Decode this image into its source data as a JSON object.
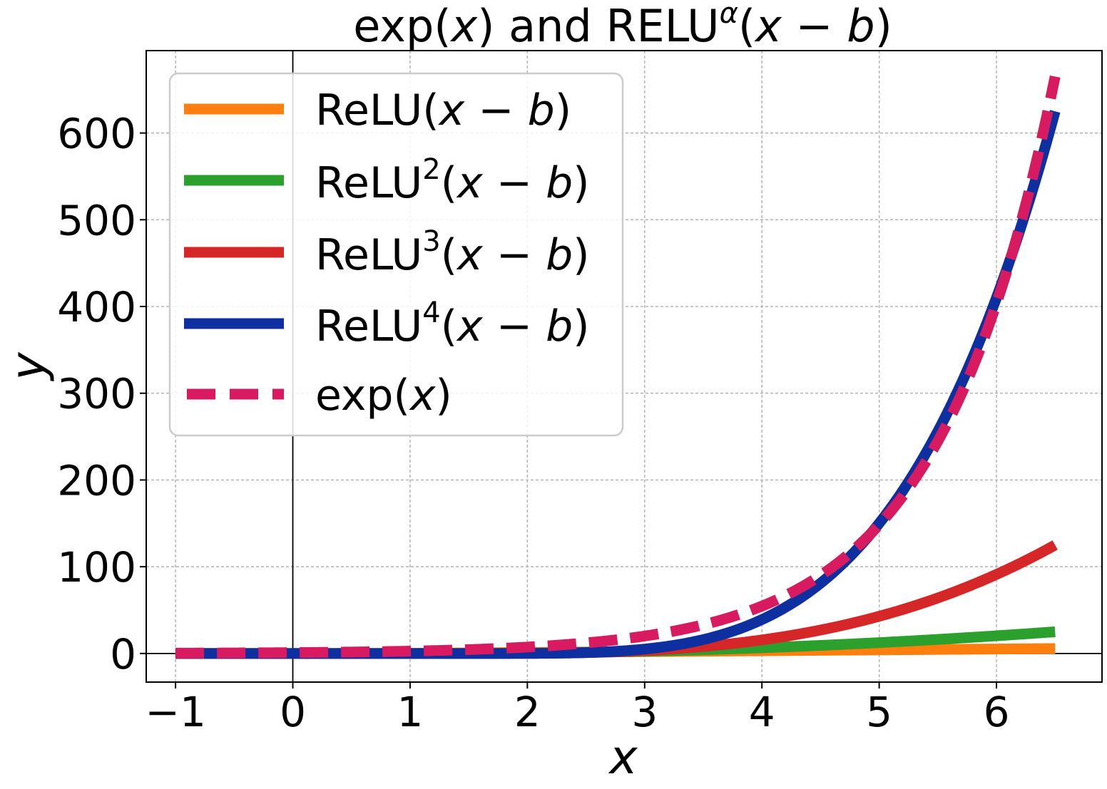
{
  "chart_data": {
    "type": "line",
    "title": {
      "prefix": "exp(",
      "prefix_var": "x",
      "middle": ") and RELU",
      "superscript": "α",
      "open": "(",
      "var_x": "x",
      "minus": " − ",
      "var_b": "b",
      "close": ")"
    },
    "xlabel": "x",
    "ylabel": "y",
    "xlim": [
      -1.25,
      6.9
    ],
    "ylim": [
      -33,
      695
    ],
    "x_ticks": [
      -1,
      0,
      1,
      2,
      3,
      4,
      5,
      6
    ],
    "x_tick_labels": [
      "−1",
      "0",
      "1",
      "2",
      "3",
      "4",
      "5",
      "6"
    ],
    "y_ticks": [
      0,
      100,
      200,
      300,
      400,
      500,
      600
    ],
    "y_tick_labels": [
      "0",
      "100",
      "200",
      "300",
      "400",
      "500",
      "600"
    ],
    "grid": true,
    "zero_lines": true,
    "legend_position": "upper-left",
    "x_range": [
      -1,
      6.5
    ],
    "series": [
      {
        "key": "relu1",
        "legend": {
          "base": "ReLU",
          "sup": "",
          "open": "(",
          "x": "x",
          "minus": " − ",
          "b": "b",
          "close": ")"
        },
        "color": "#ff7f0e",
        "dashed": false,
        "formula": {
          "kind": "relu_power",
          "scale": 1.0,
          "bias": 0.85,
          "power": 1
        },
        "samples": [
          [
            -1,
            0
          ],
          [
            1,
            0.15
          ],
          [
            3,
            2.15
          ],
          [
            5,
            4.15
          ],
          [
            6.5,
            5.65
          ]
        ]
      },
      {
        "key": "relu2",
        "legend": {
          "base": "ReLU",
          "sup": "2",
          "open": "(",
          "x": "x",
          "minus": " − ",
          "b": "b",
          "close": ")"
        },
        "color": "#2ca02c",
        "dashed": false,
        "formula": {
          "kind": "relu_power",
          "scale": 0.95,
          "bias": 1.37,
          "power": 2
        },
        "samples": [
          [
            -1,
            0
          ],
          [
            2,
            0.38
          ],
          [
            4,
            6.6
          ],
          [
            5,
            12.5
          ],
          [
            6.5,
            25.0
          ]
        ]
      },
      {
        "key": "relu3",
        "legend": {
          "base": "ReLU",
          "sup": "3",
          "open": "(",
          "x": "x",
          "minus": " − ",
          "b": "b",
          "close": ")"
        },
        "color": "#d62728",
        "dashed": false,
        "formula": {
          "kind": "relu_power",
          "scale": 1.0,
          "bias": 1.5,
          "power": 3
        },
        "samples": [
          [
            -1,
            0
          ],
          [
            3,
            3.4
          ],
          [
            4,
            15.6
          ],
          [
            5,
            42.9
          ],
          [
            6.5,
            125.0
          ]
        ]
      },
      {
        "key": "relu4",
        "legend": {
          "base": "ReLU",
          "sup": "4",
          "open": "(",
          "x": "x",
          "minus": " − ",
          "b": "b",
          "close": ")"
        },
        "color": "#0e2fa0",
        "dashed": false,
        "formula": {
          "kind": "relu_power",
          "scale": 1.0,
          "bias": 1.5,
          "power": 4
        },
        "samples": [
          [
            -1,
            0
          ],
          [
            3,
            5.1
          ],
          [
            4,
            39.1
          ],
          [
            5,
            150.1
          ],
          [
            6,
            410.1
          ],
          [
            6.5,
            625.0
          ]
        ]
      },
      {
        "key": "exp",
        "legend": {
          "base": "exp(",
          "sup": "",
          "open": "",
          "x": "x",
          "minus": "",
          "b": "",
          "close": ")"
        },
        "color": "#d81b60",
        "dashed": true,
        "formula": {
          "kind": "exp"
        },
        "samples": [
          [
            -1,
            0.37
          ],
          [
            0,
            1
          ],
          [
            2,
            7.39
          ],
          [
            4,
            54.6
          ],
          [
            5,
            148.4
          ],
          [
            6,
            403.4
          ],
          [
            6.5,
            665.1
          ]
        ]
      }
    ]
  }
}
